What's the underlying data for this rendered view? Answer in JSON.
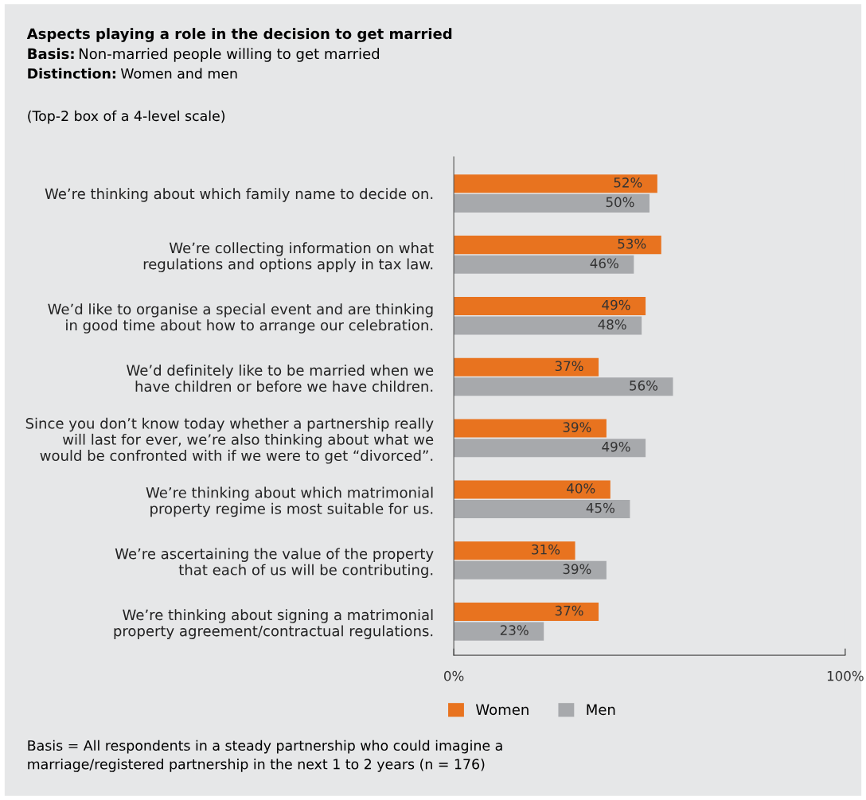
{
  "chart_data": {
    "type": "bar",
    "orientation": "horizontal",
    "title": "Aspects playing a role in the decision to get married",
    "subtitle": "Basis: Non-married people willing to get married",
    "annotations": [
      "Distinction: Women and men",
      "(Top-2 box of a 4-level scale)",
      "Basis = All respondents in a steady partnership who could imagine a\nmarriage/registered partnership in the next 1 to 2 years (n = 176)"
    ],
    "categories": [
      "We’re thinking about which family name to decide on.",
      "We’re collecting information on what\nregulations and options apply in tax law.",
      "We’d like to organise a special event and are thinking\nin good time about how to arrange our celebration.",
      "We’d definitely like to be married when we\nhave children or before we have children.",
      "Since you don’t know today whether a partnership really\nwill last for ever, we’re also thinking about what we\nwould be confronted with if we were to get “divorced”.",
      "We’re thinking about which matrimonial\nproperty regime is most suitable for us.",
      "We’re ascertaining the value of the property\nthat each of us will be contributing.",
      "We’re thinking about signing a matrimonial\nproperty agreement/contractual regulations."
    ],
    "series": [
      {
        "name": "Women",
        "color": "#e8731f",
        "values": [
          52,
          53,
          49,
          37,
          39,
          40,
          31,
          37
        ],
        "value_labels": [
          "52%",
          "53%",
          "49%",
          "37%",
          "39%",
          "40%",
          "31%",
          "37%"
        ]
      },
      {
        "name": "Men",
        "color": "#a7a9ac",
        "values": [
          50,
          46,
          48,
          56,
          49,
          45,
          39,
          23
        ],
        "value_labels": [
          "50%",
          "46%",
          "48%",
          "56%",
          "49%",
          "45%",
          "39%",
          "23%"
        ]
      }
    ],
    "xlim": [
      0,
      100
    ],
    "xticks": [
      {
        "value": 0,
        "label": "0%"
      },
      {
        "value": 100,
        "label": "100%"
      }
    ],
    "grid": false,
    "legend": "bottom"
  }
}
